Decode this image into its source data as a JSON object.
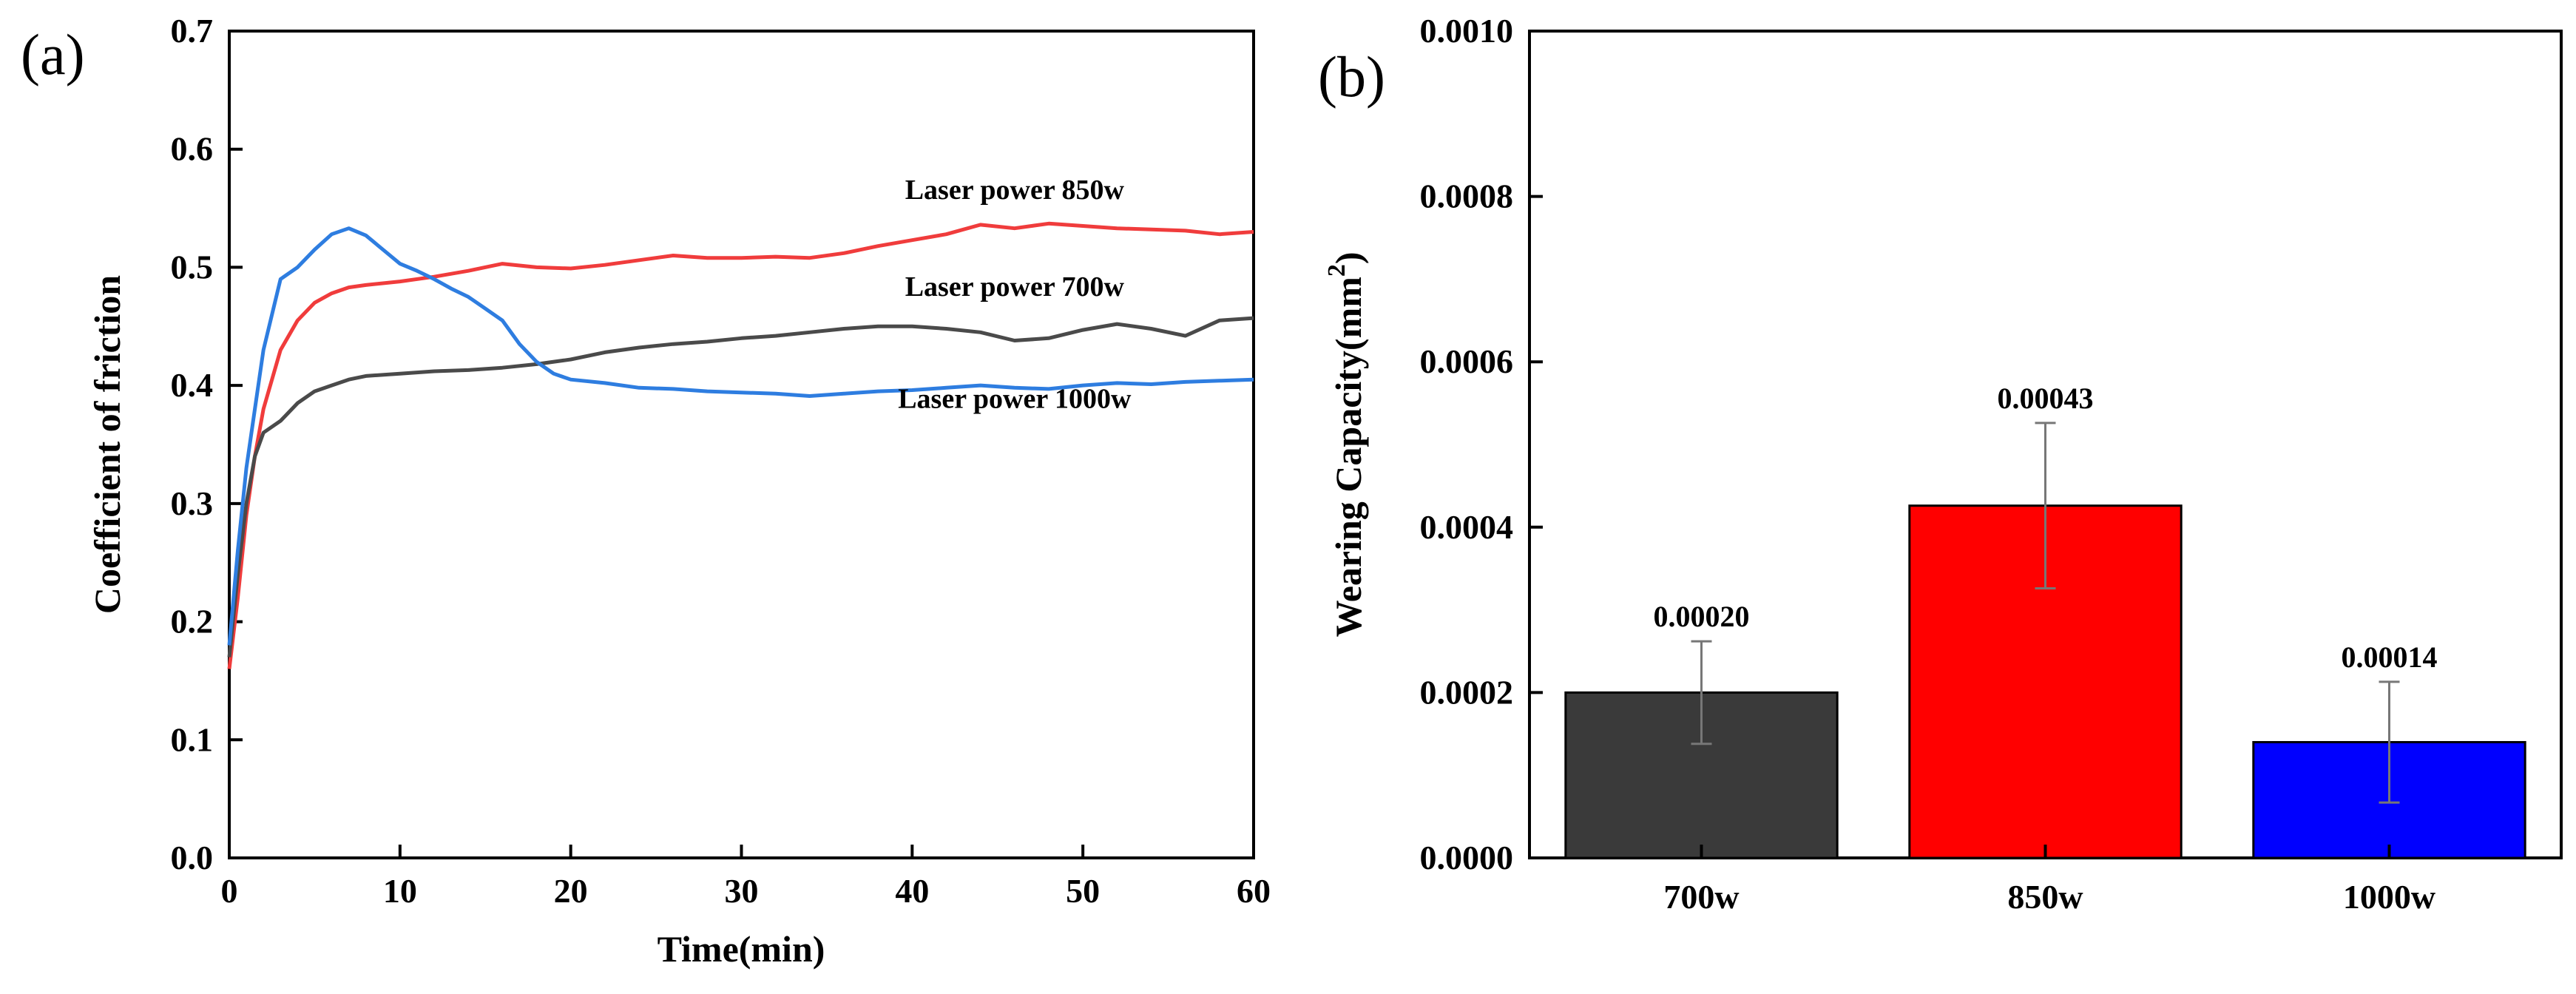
{
  "chart_data": [
    {
      "panel": "(a)",
      "type": "line",
      "xlabel": "Time(min)",
      "ylabel": "Coefficient of friction",
      "xlim": [
        0,
        60
      ],
      "ylim": [
        0.0,
        0.7
      ],
      "xticks": [
        "0",
        "10",
        "20",
        "30",
        "40",
        "50",
        "60"
      ],
      "yticks": [
        "0.0",
        "0.1",
        "0.2",
        "0.3",
        "0.4",
        "0.5",
        "0.6",
        "0.7"
      ],
      "grid": false,
      "series": [
        {
          "name": "Laser power 850w",
          "color": "#f03c3c",
          "points": [
            [
              0,
              0.16
            ],
            [
              0.5,
              0.22
            ],
            [
              1,
              0.29
            ],
            [
              1.5,
              0.34
            ],
            [
              2,
              0.38
            ],
            [
              3,
              0.43
            ],
            [
              4,
              0.455
            ],
            [
              5,
              0.47
            ],
            [
              6,
              0.478
            ],
            [
              7,
              0.483
            ],
            [
              8,
              0.485
            ],
            [
              10,
              0.488
            ],
            [
              12,
              0.492
            ],
            [
              14,
              0.497
            ],
            [
              16,
              0.503
            ],
            [
              18,
              0.5
            ],
            [
              20,
              0.499
            ],
            [
              22,
              0.502
            ],
            [
              24,
              0.506
            ],
            [
              26,
              0.51
            ],
            [
              28,
              0.508
            ],
            [
              30,
              0.508
            ],
            [
              32,
              0.509
            ],
            [
              34,
              0.508
            ],
            [
              36,
              0.512
            ],
            [
              38,
              0.518
            ],
            [
              40,
              0.523
            ],
            [
              42,
              0.528
            ],
            [
              44,
              0.536
            ],
            [
              46,
              0.533
            ],
            [
              48,
              0.537
            ],
            [
              50,
              0.535
            ],
            [
              52,
              0.533
            ],
            [
              54,
              0.532
            ],
            [
              56,
              0.531
            ],
            [
              58,
              0.528
            ],
            [
              60,
              0.53
            ]
          ]
        },
        {
          "name": "Laser power 700w",
          "color": "#4a4a4a",
          "points": [
            [
              0,
              0.17
            ],
            [
              0.5,
              0.24
            ],
            [
              1,
              0.3
            ],
            [
              1.5,
              0.34
            ],
            [
              2,
              0.36
            ],
            [
              3,
              0.37
            ],
            [
              4,
              0.385
            ],
            [
              5,
              0.395
            ],
            [
              6,
              0.4
            ],
            [
              7,
              0.405
            ],
            [
              8,
              0.408
            ],
            [
              10,
              0.41
            ],
            [
              12,
              0.412
            ],
            [
              14,
              0.413
            ],
            [
              16,
              0.415
            ],
            [
              18,
              0.418
            ],
            [
              20,
              0.422
            ],
            [
              22,
              0.428
            ],
            [
              24,
              0.432
            ],
            [
              26,
              0.435
            ],
            [
              28,
              0.437
            ],
            [
              30,
              0.44
            ],
            [
              32,
              0.442
            ],
            [
              34,
              0.445
            ],
            [
              36,
              0.448
            ],
            [
              38,
              0.45
            ],
            [
              40,
              0.45
            ],
            [
              42,
              0.448
            ],
            [
              44,
              0.445
            ],
            [
              46,
              0.438
            ],
            [
              48,
              0.44
            ],
            [
              50,
              0.447
            ],
            [
              52,
              0.452
            ],
            [
              54,
              0.448
            ],
            [
              56,
              0.442
            ],
            [
              58,
              0.455
            ],
            [
              60,
              0.457
            ]
          ]
        },
        {
          "name": "Laser power 1000w",
          "color": "#2e7de0",
          "points": [
            [
              0,
              0.18
            ],
            [
              0.5,
              0.26
            ],
            [
              1,
              0.33
            ],
            [
              1.5,
              0.38
            ],
            [
              2,
              0.43
            ],
            [
              3,
              0.49
            ],
            [
              4,
              0.5
            ],
            [
              5,
              0.515
            ],
            [
              6,
              0.528
            ],
            [
              7,
              0.533
            ],
            [
              8,
              0.527
            ],
            [
              9,
              0.515
            ],
            [
              10,
              0.503
            ],
            [
              11,
              0.497
            ],
            [
              12,
              0.49
            ],
            [
              13,
              0.482
            ],
            [
              14,
              0.475
            ],
            [
              15,
              0.465
            ],
            [
              16,
              0.455
            ],
            [
              17,
              0.435
            ],
            [
              18,
              0.42
            ],
            [
              19,
              0.41
            ],
            [
              20,
              0.405
            ],
            [
              22,
              0.402
            ],
            [
              24,
              0.398
            ],
            [
              26,
              0.397
            ],
            [
              28,
              0.395
            ],
            [
              30,
              0.394
            ],
            [
              32,
              0.393
            ],
            [
              34,
              0.391
            ],
            [
              36,
              0.393
            ],
            [
              38,
              0.395
            ],
            [
              40,
              0.396
            ],
            [
              42,
              0.398
            ],
            [
              44,
              0.4
            ],
            [
              46,
              0.398
            ],
            [
              48,
              0.397
            ],
            [
              50,
              0.4
            ],
            [
              52,
              0.402
            ],
            [
              54,
              0.401
            ],
            [
              56,
              0.403
            ],
            [
              58,
              0.404
            ],
            [
              60,
              0.405
            ]
          ]
        }
      ],
      "annotations": [
        {
          "text": "Laser power 850w",
          "x": 46,
          "y": 0.558
        },
        {
          "text": "Laser power 700w",
          "x": 46,
          "y": 0.476
        },
        {
          "text": "Laser power 1000w",
          "x": 46,
          "y": 0.381
        }
      ]
    },
    {
      "panel": "(b)",
      "type": "bar",
      "categories": [
        "700w",
        "850w",
        "1000w"
      ],
      "values": [
        0.0002,
        0.000426,
        0.00014
      ],
      "errors": [
        6.2e-05,
        0.0001,
        7.3e-05
      ],
      "value_labels": [
        "0.00020",
        "0.00043",
        "0.00014"
      ],
      "colors": [
        "#3a3a3a",
        "#ff0000",
        "#0000ff"
      ],
      "xlabel": "",
      "ylabel": "Wearing Capacity(mm",
      "ylabel_sup": "2",
      "ylabel_close": ")",
      "ylim": [
        0,
        0.001
      ],
      "yticks": [
        "0.0000",
        "0.0002",
        "0.0004",
        "0.0006",
        "0.0008",
        "0.0010"
      ],
      "grid": false
    }
  ]
}
